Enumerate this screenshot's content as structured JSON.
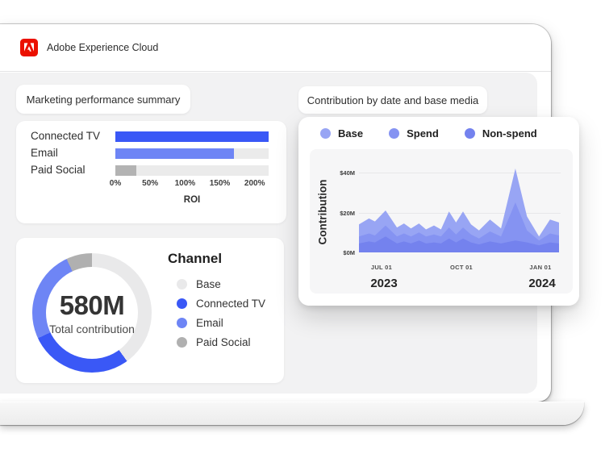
{
  "topbar": {
    "title": "Adobe Experience Cloud",
    "logo": "adobe-logo"
  },
  "tabs": {
    "performance": "Marketing performance summary",
    "contribution": "Contribution by date and base media"
  },
  "colors": {
    "blue_strong": "#3a58f6",
    "blue_light": "#6e85f5",
    "gray_bar": "#b3b3b3",
    "gray_track": "#ebebeb",
    "adobe_red": "#EB1000"
  },
  "chart_data": [
    {
      "id": "roi_bar",
      "type": "bar",
      "orientation": "horizontal",
      "title": "Marketing performance summary",
      "categories": [
        "Connected TV",
        "Email",
        "Paid Social"
      ],
      "values": [
        220,
        170,
        30
      ],
      "bar_colors": [
        "#3a58f6",
        "#6e85f5",
        "#b3b3b3"
      ],
      "track_color": "#ebebeb",
      "xlabel": "ROI",
      "xlim": [
        0,
        220
      ],
      "xticks": [
        0,
        50,
        100,
        150,
        200
      ],
      "tick_suffix": "%"
    },
    {
      "id": "channel_donut",
      "type": "pie",
      "donut": true,
      "center_value": "580M",
      "center_label": "Total contribution",
      "legend_title": "Channel",
      "labels": [
        "Base",
        "Connected TV",
        "Email",
        "Paid Social"
      ],
      "values_pct": [
        40,
        28,
        25,
        7
      ],
      "colors": [
        "#e9e9ea",
        "#3a58f6",
        "#6e85f5",
        "#b0b0b0"
      ]
    },
    {
      "id": "contribution_area",
      "type": "area",
      "title": "Contribution by date and base media",
      "ylabel": "Contribution",
      "ylim": [
        0,
        48
      ],
      "yticks": [
        {
          "label": "$0M",
          "value": 0
        },
        {
          "label": "$20M",
          "value": 20
        },
        {
          "label": "$40M",
          "value": 40
        }
      ],
      "xticks": [
        {
          "label": "JUL 01",
          "pos": 0.113
        },
        {
          "label": "OCT 01",
          "pos": 0.512
        },
        {
          "label": "JAN 01",
          "pos": 0.907
        }
      ],
      "year_labels": [
        {
          "label": "2023",
          "pos": 0.125
        },
        {
          "label": "2024",
          "pos": 0.915
        }
      ],
      "series": [
        {
          "name": "Base",
          "color": "#98a5f4",
          "points": [
            [
              0,
              14
            ],
            [
              0.05,
              17
            ],
            [
              0.08,
              15.5
            ],
            [
              0.133,
              21
            ],
            [
              0.19,
              12.5
            ],
            [
              0.225,
              14.5
            ],
            [
              0.26,
              12
            ],
            [
              0.3,
              14.5
            ],
            [
              0.335,
              11.5
            ],
            [
              0.375,
              13.5
            ],
            [
              0.41,
              11.5
            ],
            [
              0.45,
              20.5
            ],
            [
              0.485,
              15
            ],
            [
              0.52,
              20.5
            ],
            [
              0.56,
              14
            ],
            [
              0.6,
              11
            ],
            [
              0.655,
              16.5
            ],
            [
              0.71,
              12
            ],
            [
              0.782,
              42
            ],
            [
              0.84,
              18
            ],
            [
              0.9,
              8
            ],
            [
              0.955,
              16.5
            ],
            [
              1,
              15
            ]
          ]
        },
        {
          "name": "Spend",
          "color": "#8593f2",
          "points": [
            [
              0,
              8
            ],
            [
              0.05,
              9.5
            ],
            [
              0.08,
              8.5
            ],
            [
              0.133,
              13.5
            ],
            [
              0.19,
              8
            ],
            [
              0.225,
              9.5
            ],
            [
              0.26,
              8
            ],
            [
              0.3,
              10
            ],
            [
              0.335,
              8
            ],
            [
              0.375,
              9
            ],
            [
              0.41,
              8
            ],
            [
              0.45,
              12.5
            ],
            [
              0.485,
              9
            ],
            [
              0.52,
              12.5
            ],
            [
              0.56,
              9
            ],
            [
              0.6,
              7
            ],
            [
              0.655,
              10.5
            ],
            [
              0.71,
              8
            ],
            [
              0.782,
              25
            ],
            [
              0.84,
              11
            ],
            [
              0.9,
              6
            ],
            [
              0.955,
              9.5
            ],
            [
              1,
              8.5
            ]
          ]
        },
        {
          "name": "Non-spend",
          "color": "#7482ee",
          "points": [
            [
              0,
              4.5
            ],
            [
              0.05,
              5.5
            ],
            [
              0.08,
              5
            ],
            [
              0.133,
              8
            ],
            [
              0.19,
              4.5
            ],
            [
              0.225,
              5.5
            ],
            [
              0.26,
              4.5
            ],
            [
              0.3,
              6
            ],
            [
              0.335,
              4.5
            ],
            [
              0.375,
              5
            ],
            [
              0.41,
              4.5
            ],
            [
              0.45,
              7
            ],
            [
              0.485,
              5
            ],
            [
              0.52,
              7
            ],
            [
              0.56,
              5
            ],
            [
              0.6,
              4
            ],
            [
              0.655,
              5.5
            ],
            [
              0.71,
              4.5
            ],
            [
              0.782,
              6
            ],
            [
              0.84,
              5
            ],
            [
              0.9,
              3.5
            ],
            [
              0.955,
              5
            ],
            [
              1,
              4.5
            ]
          ]
        }
      ]
    }
  ]
}
